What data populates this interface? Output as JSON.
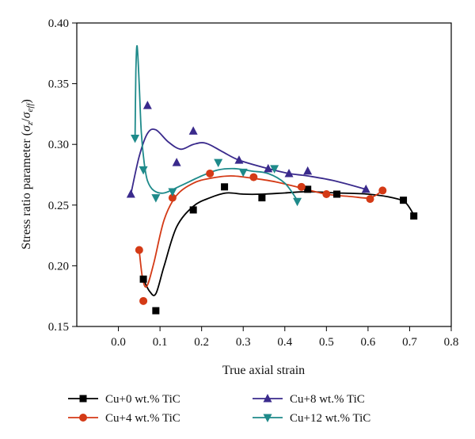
{
  "chart_data": {
    "type": "scatter",
    "title": "",
    "xlabel": "True axial strain",
    "ylabel_main": "Stress ratio parameter (",
    "ylabel_sigma": "σ",
    "ylabel_sub_z": "z",
    "ylabel_slash": "/",
    "ylabel_sub_eff": "eff",
    "ylabel_close": ")",
    "xlim": [
      -0.1,
      0.8
    ],
    "ylim": [
      0.15,
      0.4
    ],
    "xticks": [
      "0.0",
      "0.1",
      "0.2",
      "0.3",
      "0.4",
      "0.5",
      "0.6",
      "0.7",
      "0.8"
    ],
    "yticks": [
      "0.15",
      "0.20",
      "0.25",
      "0.30",
      "0.35",
      "0.40"
    ],
    "grid": false,
    "legend_position": "bottom",
    "series": [
      {
        "name": "Cu+0 wt.% TiC",
        "marker": "square",
        "color": "#000000",
        "points": [
          [
            0.06,
            0.189
          ],
          [
            0.09,
            0.163
          ],
          [
            0.18,
            0.246
          ],
          [
            0.255,
            0.265
          ],
          [
            0.345,
            0.256
          ],
          [
            0.455,
            0.263
          ],
          [
            0.525,
            0.259
          ],
          [
            0.685,
            0.254
          ],
          [
            0.71,
            0.241
          ]
        ],
        "curve": [
          [
            0.06,
            0.189
          ],
          [
            0.075,
            0.179
          ],
          [
            0.09,
            0.177
          ],
          [
            0.11,
            0.2
          ],
          [
            0.14,
            0.232
          ],
          [
            0.18,
            0.249
          ],
          [
            0.22,
            0.256
          ],
          [
            0.26,
            0.26
          ],
          [
            0.3,
            0.259
          ],
          [
            0.345,
            0.259
          ],
          [
            0.4,
            0.26
          ],
          [
            0.455,
            0.261
          ],
          [
            0.525,
            0.26
          ],
          [
            0.6,
            0.259
          ],
          [
            0.66,
            0.256
          ],
          [
            0.69,
            0.252
          ],
          [
            0.71,
            0.242
          ]
        ]
      },
      {
        "name": "Cu+4 wt.% TiC",
        "marker": "circle",
        "color": "#d43a16",
        "points": [
          [
            0.05,
            0.213
          ],
          [
            0.06,
            0.171
          ],
          [
            0.13,
            0.256
          ],
          [
            0.22,
            0.276
          ],
          [
            0.325,
            0.273
          ],
          [
            0.44,
            0.265
          ],
          [
            0.5,
            0.259
          ],
          [
            0.605,
            0.255
          ],
          [
            0.635,
            0.262
          ]
        ],
        "curve": [
          [
            0.05,
            0.213
          ],
          [
            0.058,
            0.19
          ],
          [
            0.068,
            0.183
          ],
          [
            0.085,
            0.202
          ],
          [
            0.11,
            0.238
          ],
          [
            0.14,
            0.258
          ],
          [
            0.18,
            0.268
          ],
          [
            0.22,
            0.272
          ],
          [
            0.27,
            0.274
          ],
          [
            0.325,
            0.272
          ],
          [
            0.38,
            0.269
          ],
          [
            0.44,
            0.264
          ],
          [
            0.5,
            0.259
          ],
          [
            0.56,
            0.257
          ],
          [
            0.605,
            0.256
          ],
          [
            0.635,
            0.262
          ]
        ]
      },
      {
        "name": "Cu+8 wt.% TiC",
        "marker": "triangle-up",
        "color": "#3a2a8c",
        "points": [
          [
            0.03,
            0.259
          ],
          [
            0.07,
            0.332
          ],
          [
            0.14,
            0.285
          ],
          [
            0.18,
            0.311
          ],
          [
            0.29,
            0.287
          ],
          [
            0.36,
            0.28
          ],
          [
            0.41,
            0.276
          ],
          [
            0.455,
            0.278
          ],
          [
            0.595,
            0.263
          ]
        ],
        "curve": [
          [
            0.03,
            0.259
          ],
          [
            0.05,
            0.29
          ],
          [
            0.07,
            0.309
          ],
          [
            0.09,
            0.312
          ],
          [
            0.12,
            0.302
          ],
          [
            0.15,
            0.296
          ],
          [
            0.18,
            0.3
          ],
          [
            0.21,
            0.301
          ],
          [
            0.25,
            0.294
          ],
          [
            0.29,
            0.287
          ],
          [
            0.36,
            0.28
          ],
          [
            0.41,
            0.276
          ],
          [
            0.455,
            0.274
          ],
          [
            0.52,
            0.27
          ],
          [
            0.595,
            0.263
          ]
        ]
      },
      {
        "name": "Cu+12 wt.% TiC",
        "marker": "triangle-down",
        "color": "#1e8a8a",
        "points": [
          [
            0.04,
            0.305
          ],
          [
            0.06,
            0.279
          ],
          [
            0.09,
            0.256
          ],
          [
            0.13,
            0.261
          ],
          [
            0.24,
            0.285
          ],
          [
            0.3,
            0.277
          ],
          [
            0.375,
            0.28
          ],
          [
            0.43,
            0.253
          ]
        ],
        "curve": [
          [
            0.04,
            0.305
          ],
          [
            0.042,
            0.36
          ],
          [
            0.045,
            0.381
          ],
          [
            0.05,
            0.35
          ],
          [
            0.055,
            0.31
          ],
          [
            0.062,
            0.285
          ],
          [
            0.07,
            0.27
          ],
          [
            0.085,
            0.262
          ],
          [
            0.11,
            0.26
          ],
          [
            0.15,
            0.266
          ],
          [
            0.2,
            0.274
          ],
          [
            0.24,
            0.279
          ],
          [
            0.28,
            0.28
          ],
          [
            0.32,
            0.278
          ],
          [
            0.36,
            0.276
          ],
          [
            0.4,
            0.268
          ],
          [
            0.43,
            0.254
          ]
        ]
      }
    ]
  }
}
